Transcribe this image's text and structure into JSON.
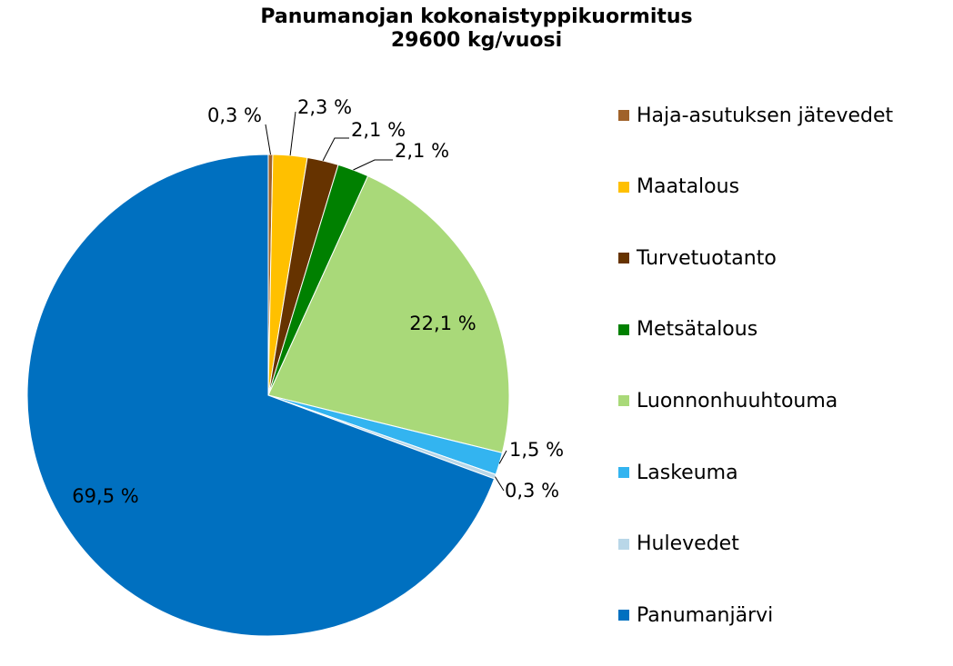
{
  "chart_data": {
    "type": "pie",
    "title": "Panumanojan kokonaistyppikuormitus",
    "subtitle": "29600 kg/vuosi",
    "categories": [
      "Haja-asutuksen jätevedet",
      "Maatalous",
      "Turvetuotanto",
      "Metsätalous",
      "Luonnonhuuhtouma",
      "Laskeuma",
      "Hulevedet",
      "Panumanjärvi"
    ],
    "values": [
      0.3,
      2.3,
      2.1,
      2.1,
      22.1,
      1.5,
      0.3,
      69.5
    ],
    "data_labels": [
      "0,3 %",
      "2,3 %",
      "2,1 %",
      "2,1 %",
      "22,1 %",
      "1,5 %",
      "0,3 %",
      "69,5 %"
    ],
    "colors": [
      "#a0622a",
      "#ffc000",
      "#663300",
      "#008000",
      "#a9d979",
      "#33b4f0",
      "#b9d7e8",
      "#0070c0"
    ],
    "legend_position": "right"
  }
}
